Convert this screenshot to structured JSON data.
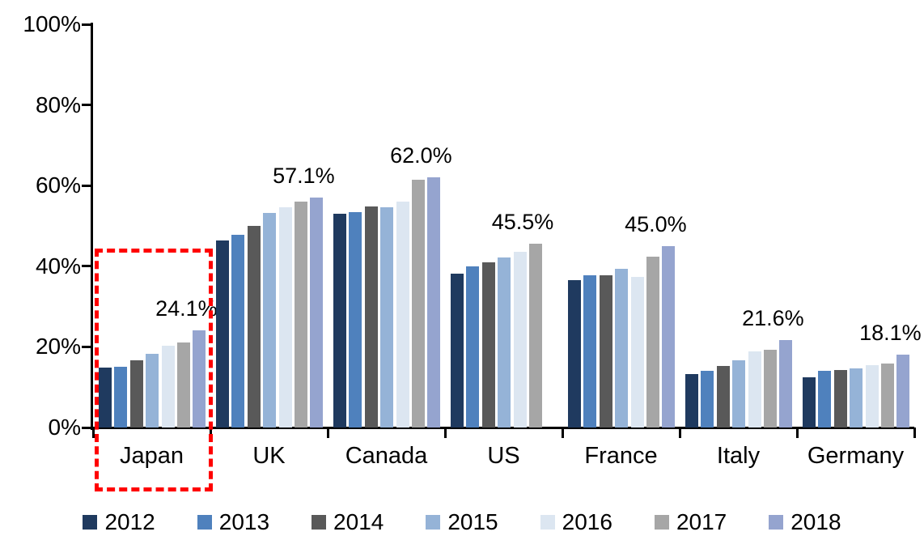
{
  "chart_data": {
    "type": "bar",
    "title": "",
    "xlabel": "",
    "ylabel": "",
    "unit": "%",
    "ylim": [
      0,
      100
    ],
    "y_ticks": [
      "0%",
      "20%",
      "40%",
      "60%",
      "80%",
      "100%"
    ],
    "grid": false,
    "legend_position": "bottom",
    "categories": [
      "Japan",
      "UK",
      "Canada",
      "US",
      "France",
      "Italy",
      "Germany"
    ],
    "series": [
      {
        "name": "2012",
        "color": "#1f3a5f",
        "values": [
          14.8,
          46.3,
          53.0,
          38.2,
          36.5,
          13.2,
          12.5
        ]
      },
      {
        "name": "2013",
        "color": "#4f81bd",
        "values": [
          15.0,
          47.8,
          53.4,
          39.9,
          37.8,
          14.0,
          14.1
        ]
      },
      {
        "name": "2014",
        "color": "#595959",
        "values": [
          16.6,
          50.0,
          54.8,
          41.0,
          37.7,
          15.3,
          14.3
        ]
      },
      {
        "name": "2015",
        "color": "#95b3d7",
        "values": [
          18.3,
          53.3,
          54.6,
          42.1,
          39.3,
          16.7,
          14.6
        ]
      },
      {
        "name": "2016",
        "color": "#dce6f1",
        "values": [
          20.3,
          54.6,
          56.1,
          43.6,
          37.3,
          18.9,
          15.4
        ]
      },
      {
        "name": "2017",
        "color": "#a6a6a6",
        "values": [
          21.1,
          56.0,
          61.5,
          45.5,
          42.3,
          19.2,
          15.8
        ]
      },
      {
        "name": "2018",
        "color": "#95a4cf",
        "values": [
          24.1,
          57.1,
          62.0,
          null,
          45.0,
          21.6,
          18.1
        ]
      }
    ],
    "data_labels": [
      "24.1%",
      "57.1%",
      "62.0%",
      "45.5%",
      "45.0%",
      "21.6%",
      "18.1%"
    ],
    "highlight": {
      "category": "Japan",
      "color": "#ff0000",
      "style": "dashed"
    }
  }
}
